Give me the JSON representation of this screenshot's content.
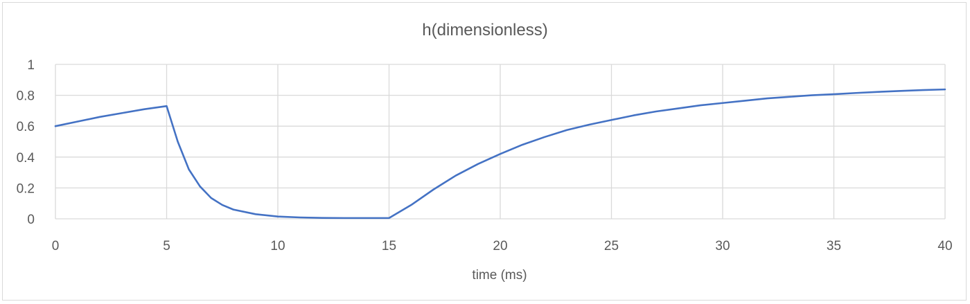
{
  "chart_data": {
    "type": "line",
    "title": "h(dimensionless)",
    "xlabel": "time (ms)",
    "ylabel": "",
    "xlim": [
      0,
      40
    ],
    "ylim": [
      0,
      1
    ],
    "x_ticks": [
      0,
      5,
      10,
      15,
      20,
      25,
      30,
      35,
      40
    ],
    "x_tick_labels": [
      "0",
      "5",
      "10",
      "15",
      "20",
      "25",
      "30",
      "35",
      "40"
    ],
    "y_ticks": [
      0,
      0.2,
      0.4,
      0.6,
      0.8,
      1
    ],
    "y_tick_labels": [
      "0",
      "0.2",
      "0.4",
      "0.6",
      "0.8",
      "1"
    ],
    "grid": true,
    "legend": "none",
    "series": [
      {
        "color": "#4472c4",
        "x": [
          0,
          1,
          2,
          3,
          4,
          5,
          5.5,
          6,
          6.5,
          7,
          7.5,
          8,
          9,
          10,
          11,
          12,
          13,
          14,
          15,
          16,
          17,
          18,
          19,
          20,
          21,
          22,
          23,
          24,
          25,
          26,
          27,
          28,
          29,
          30,
          31,
          32,
          33,
          34,
          35,
          36,
          37,
          38,
          39,
          40
        ],
        "y": [
          0.6,
          0.63,
          0.66,
          0.685,
          0.71,
          0.73,
          0.5,
          0.32,
          0.21,
          0.135,
          0.09,
          0.06,
          0.03,
          0.015,
          0.009,
          0.006,
          0.005,
          0.005,
          0.005,
          0.09,
          0.19,
          0.28,
          0.355,
          0.42,
          0.48,
          0.53,
          0.575,
          0.61,
          0.64,
          0.67,
          0.695,
          0.715,
          0.735,
          0.75,
          0.765,
          0.78,
          0.79,
          0.8,
          0.807,
          0.815,
          0.822,
          0.828,
          0.834,
          0.838
        ]
      }
    ]
  }
}
